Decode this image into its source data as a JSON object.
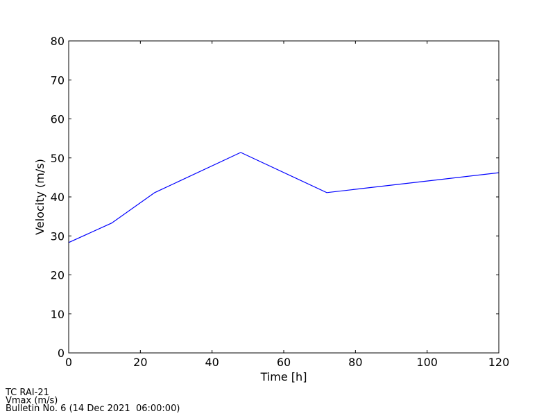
{
  "chart_data": {
    "type": "line",
    "x_label": "Time [h]",
    "y_label": "Velocity (m/s)",
    "x": [
      0,
      12,
      24,
      48,
      72,
      120
    ],
    "series": [
      {
        "name": "Vmax (m/s)",
        "color": "#0000ff",
        "values": [
          28.3,
          33.3,
          41.1,
          51.4,
          41.1,
          46.2
        ]
      }
    ],
    "xlim": [
      0,
      120
    ],
    "xticks": [
      0,
      20,
      40,
      60,
      80,
      100,
      120
    ],
    "ylim": [
      0,
      80
    ],
    "yticks": [
      0,
      10,
      20,
      30,
      40,
      50,
      60,
      70,
      80
    ],
    "grid": false,
    "legend": false,
    "annotations": [
      "TC RAI-21",
      "Vmax (m/s)",
      "Bulletin No. 6 (14 Dec 2021  06:00:00)"
    ]
  }
}
